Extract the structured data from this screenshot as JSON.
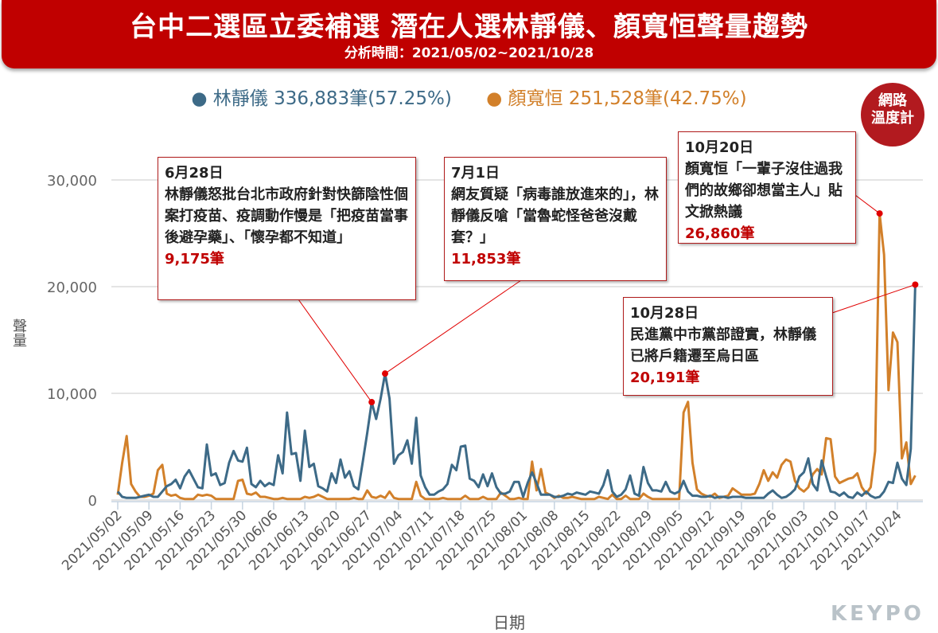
{
  "header": {
    "title": "台中二選區立委補選 潛在人選林靜儀、顏寬恒聲量趨勢",
    "subtitle": "分析時間：2021/05/02~2021/10/28"
  },
  "badge": {
    "line1": "網路",
    "line2": "溫度計"
  },
  "logo": "KEYPO",
  "colors": {
    "lin": "#3d6a87",
    "yan": "#d2802a",
    "annotation": "#e00000"
  },
  "chart_data": {
    "type": "line",
    "title": "台中二選區立委補選 潛在人選林靜儀、顏寬恒聲量趨勢",
    "xlabel": "日期",
    "ylabel": "聲量",
    "ylim": [
      0,
      30000
    ],
    "yticks": [
      0,
      10000,
      20000,
      30000
    ],
    "ytick_labels": [
      "0",
      "10,000",
      "20,000",
      "30,000"
    ],
    "x_start": "2021/05/02",
    "x_end": "2021/10/28",
    "xtick_labels": [
      "2021/05/02",
      "2021/05/09",
      "2021/05/16",
      "2021/05/23",
      "2021/05/30",
      "2021/06/06",
      "2021/06/13",
      "2021/06/20",
      "2021/06/27",
      "2021/07/04",
      "2021/07/11",
      "2021/07/18",
      "2021/07/25",
      "2021/08/01",
      "2021/08/08",
      "2021/08/15",
      "2021/08/22",
      "2021/08/29",
      "2021/09/05",
      "2021/09/12",
      "2021/09/19",
      "2021/09/26",
      "2021/10/03",
      "2021/10/10",
      "2021/10/17",
      "2021/10/24"
    ],
    "legend_position": "top-center",
    "series": [
      {
        "name": "林靜儀",
        "legend": "林靜儀 336,883筆(57.25%)",
        "values": [
          800,
          300,
          200,
          200,
          200,
          300,
          400,
          500,
          300,
          300,
          800,
          1300,
          1500,
          1900,
          1100,
          2200,
          2800,
          2000,
          1200,
          1100,
          5200,
          2300,
          2500,
          1400,
          1600,
          3500,
          4600,
          3700,
          3600,
          4900,
          1500,
          1200,
          1800,
          1300,
          1600,
          1400,
          4200,
          2500,
          8200,
          4300,
          4400,
          1800,
          6500,
          3100,
          3400,
          1300,
          1100,
          800,
          2500,
          1600,
          3800,
          2100,
          2700,
          1300,
          1000,
          3600,
          6300,
          9175,
          7600,
          9500,
          11853,
          9500,
          3400,
          4200,
          4500,
          5600,
          3400,
          7700,
          2300,
          1200,
          500,
          500,
          800,
          1000,
          1500,
          3300,
          2800,
          5000,
          5100,
          2000,
          1800,
          1200,
          2400,
          1300,
          2500,
          1200,
          600,
          600,
          800,
          1700,
          1700,
          300,
          1600,
          2600,
          1600,
          500,
          500,
          500,
          300,
          300,
          400,
          600,
          500,
          700,
          600,
          500,
          800,
          700,
          600,
          1400,
          2800,
          800,
          300,
          500,
          1000,
          2300,
          600,
          400,
          3100,
          1600,
          900,
          900,
          800,
          1700,
          800,
          600,
          800,
          1800,
          800,
          400,
          400,
          300,
          300,
          400,
          200,
          300,
          300,
          200,
          300,
          300,
          300,
          200,
          200,
          200,
          200,
          200,
          600,
          900,
          500,
          200,
          300,
          600,
          1000,
          2200,
          2600,
          3900,
          1500,
          900,
          3700,
          2200,
          800,
          700,
          400,
          700,
          300,
          200,
          700,
          400,
          800,
          400,
          200,
          300,
          800,
          1700,
          1600,
          3500,
          2000,
          1400,
          4800,
          20191
        ]
      },
      {
        "name": "顏寬恒",
        "legend": "顏寬恒 251,528筆(42.75%)",
        "values": [
          500,
          3500,
          6000,
          1500,
          800,
          300,
          300,
          400,
          600,
          2800,
          3300,
          600,
          400,
          500,
          200,
          100,
          100,
          100,
          500,
          400,
          500,
          400,
          100,
          100,
          100,
          100,
          100,
          1800,
          1900,
          600,
          500,
          700,
          300,
          300,
          200,
          100,
          100,
          200,
          100,
          100,
          100,
          100,
          300,
          200,
          300,
          500,
          300,
          100,
          100,
          100,
          100,
          100,
          100,
          200,
          100,
          100,
          900,
          300,
          200,
          400,
          200,
          800,
          200,
          100,
          100,
          100,
          100,
          1700,
          400,
          100,
          100,
          100,
          100,
          200,
          100,
          100,
          100,
          100,
          400,
          100,
          100,
          100,
          300,
          100,
          100,
          100,
          700,
          400,
          100,
          100,
          200,
          100,
          100,
          3600,
          900,
          2900,
          700,
          500,
          200,
          400,
          200,
          200,
          300,
          200,
          100,
          100,
          100,
          100,
          300,
          200,
          100,
          500,
          100,
          100,
          400,
          100,
          100,
          100,
          600,
          300,
          100,
          100,
          100,
          100,
          100,
          100,
          100,
          8200,
          9200,
          3500,
          1000,
          600,
          400,
          300,
          600,
          200,
          300,
          400,
          1100,
          800,
          500,
          500,
          500,
          600,
          1500,
          2800,
          1800,
          2600,
          2100,
          3300,
          3800,
          3600,
          1800,
          1100,
          800,
          1200,
          2400,
          2900,
          2400,
          5800,
          5700,
          2200,
          1600,
          1800,
          2000,
          2100,
          2500,
          1200,
          600,
          1200,
          4600,
          26860,
          23000,
          10300,
          15700,
          14800,
          3900,
          5400,
          1500,
          2300
        ]
      }
    ],
    "annotations": [
      {
        "series": 0,
        "date": "6月28日",
        "index": 57,
        "text": "林靜儀怒批台北市政府針對快篩陰性個案打疫苗、疫調動作慢是「把疫苗當事後避孕藥」、「懷孕都不知道」",
        "value": "9,175筆"
      },
      {
        "series": 0,
        "date": "7月1日",
        "index": 60,
        "text": "網友質疑「病毒誰放進來的」，林靜儀反嗆「當魯蛇怪爸爸沒戴套？」",
        "value": "11,853筆"
      },
      {
        "series": 1,
        "date": "10月20日",
        "index": 171,
        "text": "顏寬恒「一輩子沒住過我們的故鄉卻想當主人」貼文掀熱議",
        "value": "26,860筆"
      },
      {
        "series": 0,
        "date": "10月28日",
        "index": 179,
        "text": "民進黨中市黨部證實，林靜儀已將戶籍遷至烏日區",
        "value": "20,191筆"
      }
    ]
  }
}
